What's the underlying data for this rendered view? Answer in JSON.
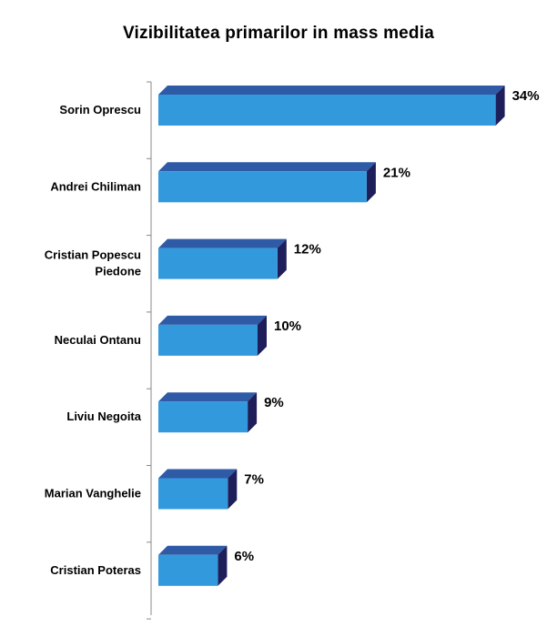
{
  "chart_data": {
    "type": "bar",
    "orientation": "horizontal",
    "title": "Vizibilitatea primarilor in mass media",
    "categories": [
      "Sorin Oprescu",
      "Andrei Chiliman",
      "Cristian Popescu Piedone",
      "Neculai Ontanu",
      "Liviu Negoita",
      "Marian Vanghelie",
      "Cristian Poteras"
    ],
    "category_lines": [
      [
        "Sorin Oprescu"
      ],
      [
        "Andrei Chiliman"
      ],
      [
        "Cristian Popescu",
        "Piedone"
      ],
      [
        "Neculai Ontanu"
      ],
      [
        "Liviu Negoita"
      ],
      [
        "Marian Vanghelie"
      ],
      [
        "Cristian Poteras"
      ]
    ],
    "values": [
      34,
      21,
      12,
      10,
      9,
      7,
      6
    ],
    "value_labels": [
      "34%",
      "21%",
      "12%",
      "10%",
      "9%",
      "7%",
      "6%"
    ],
    "unit": "%",
    "xlim": [
      0,
      35
    ],
    "grid": false,
    "legend": "none",
    "style": "3d",
    "colors": {
      "front": "#3399dd",
      "top": "#2f5aa6",
      "side": "#1e1e5a",
      "axis": "#888888"
    }
  }
}
